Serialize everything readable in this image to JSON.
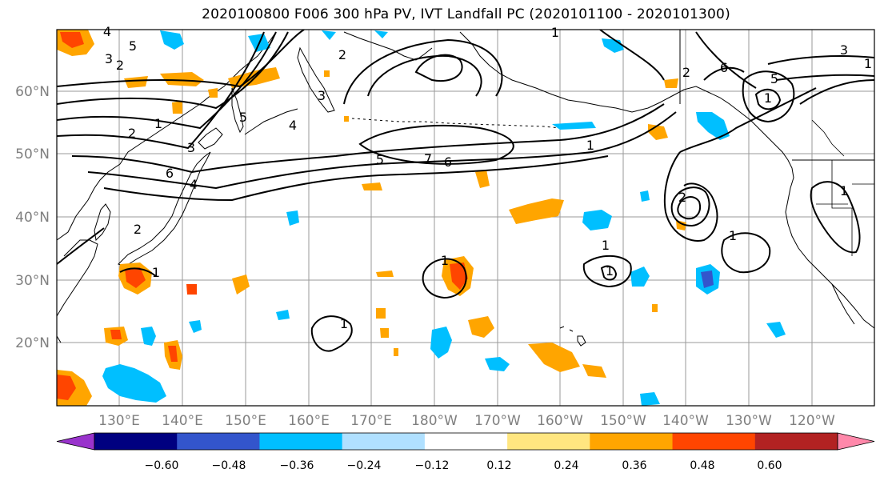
{
  "title": "2020100800 F006 300 hPa PV, IVT Landfall PC (2020101100 - 2020101300)",
  "lat_ticks": [
    "60°N",
    "50°N",
    "40°N",
    "30°N",
    "20°N"
  ],
  "lon_ticks": [
    "130°E",
    "140°E",
    "150°E",
    "160°E",
    "170°E",
    "180°W",
    "170°W",
    "160°W",
    "150°W",
    "140°W",
    "130°W",
    "120°W"
  ],
  "colorbar": {
    "ticks": [
      "−0.60",
      "−0.48",
      "−0.36",
      "−0.24",
      "−0.12",
      "0.12",
      "0.24",
      "0.36",
      "0.48",
      "0.60"
    ],
    "colors": [
      "#9933cc",
      "#000080",
      "#3355cc",
      "#00bfff",
      "#b0e0ff",
      "#ffffff",
      "#ffe680",
      "#ffa500",
      "#ff4500",
      "#b22222",
      "#ff88aa"
    ]
  },
  "contour_labels": [
    "4",
    "5",
    "3",
    "2",
    "2",
    "1",
    "3",
    "6",
    "4",
    "2",
    "5",
    "4",
    "2",
    "3",
    "5",
    "7",
    "6",
    "1",
    "1",
    "2",
    "6",
    "5",
    "3",
    "1",
    "1",
    "1",
    "1",
    "1",
    "1",
    "2",
    "1",
    "1",
    "1"
  ]
}
